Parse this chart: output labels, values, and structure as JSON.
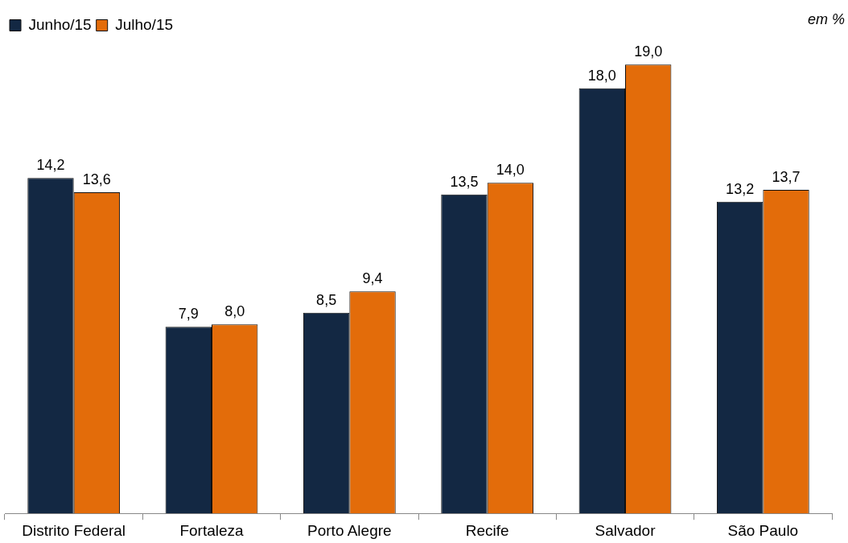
{
  "chart_data": {
    "type": "bar",
    "categories": [
      "Distrito Federal",
      "Fortaleza",
      "Porto Alegre",
      "Recife",
      "Salvador",
      "São Paulo"
    ],
    "series": [
      {
        "name": "Junho/15",
        "color": "#132843",
        "values": [
          14.2,
          7.9,
          8.5,
          13.5,
          18.0,
          13.2
        ],
        "value_labels": [
          "14,2",
          "7,9",
          "8,5",
          "13,5",
          "18,0",
          "13,2"
        ]
      },
      {
        "name": "Julho/15",
        "color": "#e36c0a",
        "values": [
          13.6,
          8.0,
          9.4,
          14.0,
          19.0,
          13.7
        ],
        "value_labels": [
          "13,6",
          "8,0",
          "9,4",
          "14,0",
          "19,0",
          "13,7"
        ]
      }
    ],
    "annotations": [
      "em %"
    ],
    "legend": "top left"
  }
}
